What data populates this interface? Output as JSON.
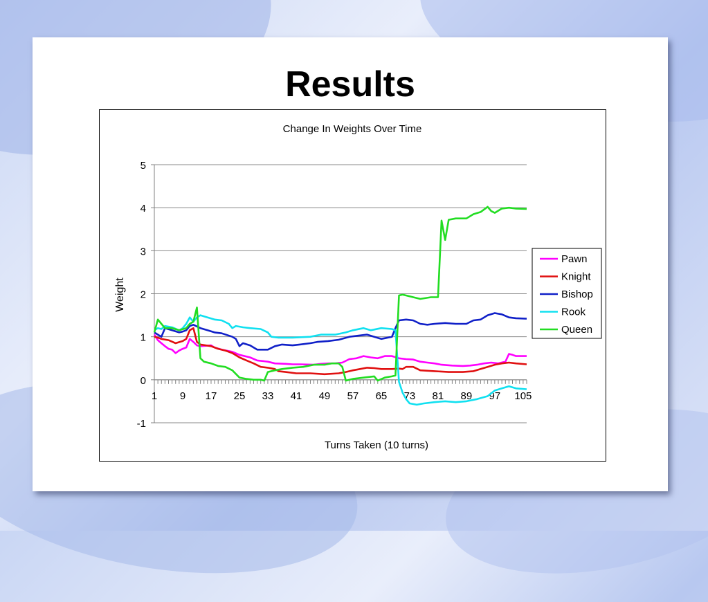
{
  "slide": {
    "title": "Results"
  },
  "chart_data": {
    "type": "line",
    "title": "Change In Weights Over Time",
    "xlabel": "Turns Taken (10 turns)",
    "ylabel": "Weight",
    "ylim": [
      -1,
      5
    ],
    "yticks": [
      -1,
      0,
      1,
      2,
      3,
      4,
      5
    ],
    "xlim": [
      1,
      106
    ],
    "xtick_labels": [
      1,
      9,
      17,
      25,
      33,
      41,
      49,
      57,
      65,
      73,
      81,
      89,
      97,
      105
    ],
    "grid": "horizontal",
    "legend_position": "right",
    "series": [
      {
        "name": "Pawn",
        "color": "#ff00ff",
        "points": [
          [
            1,
            1.05
          ],
          [
            2,
            0.92
          ],
          [
            3,
            0.85
          ],
          [
            4,
            0.78
          ],
          [
            5,
            0.72
          ],
          [
            6,
            0.7
          ],
          [
            7,
            0.62
          ],
          [
            8,
            0.68
          ],
          [
            9,
            0.72
          ],
          [
            10,
            0.75
          ],
          [
            11,
            0.95
          ],
          [
            12,
            0.88
          ],
          [
            13,
            0.8
          ],
          [
            14,
            0.78
          ],
          [
            17,
            0.8
          ],
          [
            18,
            0.75
          ],
          [
            20,
            0.7
          ],
          [
            23,
            0.65
          ],
          [
            25,
            0.58
          ],
          [
            28,
            0.52
          ],
          [
            30,
            0.45
          ],
          [
            33,
            0.42
          ],
          [
            35,
            0.38
          ],
          [
            38,
            0.37
          ],
          [
            40,
            0.36
          ],
          [
            42,
            0.36
          ],
          [
            46,
            0.35
          ],
          [
            48,
            0.37
          ],
          [
            50,
            0.38
          ],
          [
            52,
            0.38
          ],
          [
            54,
            0.4
          ],
          [
            56,
            0.48
          ],
          [
            58,
            0.5
          ],
          [
            60,
            0.55
          ],
          [
            62,
            0.52
          ],
          [
            64,
            0.5
          ],
          [
            66,
            0.55
          ],
          [
            68,
            0.55
          ],
          [
            70,
            0.5
          ],
          [
            72,
            0.48
          ],
          [
            74,
            0.47
          ],
          [
            76,
            0.42
          ],
          [
            78,
            0.4
          ],
          [
            80,
            0.38
          ],
          [
            82,
            0.35
          ],
          [
            85,
            0.33
          ],
          [
            88,
            0.32
          ],
          [
            90,
            0.33
          ],
          [
            92,
            0.35
          ],
          [
            94,
            0.38
          ],
          [
            96,
            0.4
          ],
          [
            98,
            0.38
          ],
          [
            100,
            0.42
          ],
          [
            101,
            0.6
          ],
          [
            102,
            0.58
          ],
          [
            103,
            0.55
          ],
          [
            106,
            0.55
          ]
        ]
      },
      {
        "name": "Knight",
        "color": "#e01010",
        "points": [
          [
            1,
            1.0
          ],
          [
            2,
            0.98
          ],
          [
            3,
            0.95
          ],
          [
            5,
            0.92
          ],
          [
            7,
            0.85
          ],
          [
            9,
            0.9
          ],
          [
            10,
            0.95
          ],
          [
            11,
            1.15
          ],
          [
            12,
            1.2
          ],
          [
            13,
            0.88
          ],
          [
            14,
            0.82
          ],
          [
            17,
            0.78
          ],
          [
            19,
            0.72
          ],
          [
            21,
            0.68
          ],
          [
            23,
            0.62
          ],
          [
            25,
            0.52
          ],
          [
            27,
            0.45
          ],
          [
            29,
            0.38
          ],
          [
            31,
            0.3
          ],
          [
            33,
            0.28
          ],
          [
            35,
            0.25
          ],
          [
            36,
            0.2
          ],
          [
            38,
            0.18
          ],
          [
            41,
            0.15
          ],
          [
            45,
            0.15
          ],
          [
            49,
            0.13
          ],
          [
            53,
            0.15
          ],
          [
            55,
            0.18
          ],
          [
            57,
            0.22
          ],
          [
            59,
            0.25
          ],
          [
            61,
            0.28
          ],
          [
            63,
            0.27
          ],
          [
            65,
            0.25
          ],
          [
            68,
            0.25
          ],
          [
            70,
            0.26
          ],
          [
            71,
            0.25
          ],
          [
            72,
            0.3
          ],
          [
            74,
            0.3
          ],
          [
            76,
            0.22
          ],
          [
            80,
            0.2
          ],
          [
            84,
            0.18
          ],
          [
            88,
            0.18
          ],
          [
            91,
            0.2
          ],
          [
            93,
            0.25
          ],
          [
            95,
            0.3
          ],
          [
            97,
            0.35
          ],
          [
            99,
            0.38
          ],
          [
            101,
            0.4
          ],
          [
            103,
            0.38
          ],
          [
            106,
            0.36
          ]
        ]
      },
      {
        "name": "Bishop",
        "color": "#1020c8",
        "points": [
          [
            1,
            1.1
          ],
          [
            2,
            1.05
          ],
          [
            3,
            1.0
          ],
          [
            4,
            1.2
          ],
          [
            6,
            1.15
          ],
          [
            8,
            1.1
          ],
          [
            9,
            1.12
          ],
          [
            10,
            1.15
          ],
          [
            11,
            1.25
          ],
          [
            12,
            1.28
          ],
          [
            14,
            1.2
          ],
          [
            16,
            1.15
          ],
          [
            18,
            1.1
          ],
          [
            20,
            1.08
          ],
          [
            23,
            1.0
          ],
          [
            24,
            0.95
          ],
          [
            25,
            0.78
          ],
          [
            26,
            0.85
          ],
          [
            28,
            0.8
          ],
          [
            30,
            0.7
          ],
          [
            33,
            0.7
          ],
          [
            35,
            0.78
          ],
          [
            37,
            0.82
          ],
          [
            40,
            0.8
          ],
          [
            42,
            0.82
          ],
          [
            45,
            0.85
          ],
          [
            47,
            0.88
          ],
          [
            50,
            0.9
          ],
          [
            53,
            0.93
          ],
          [
            56,
            1.0
          ],
          [
            58,
            1.02
          ],
          [
            61,
            1.05
          ],
          [
            63,
            1.0
          ],
          [
            65,
            0.95
          ],
          [
            68,
            1.0
          ],
          [
            69,
            1.2
          ],
          [
            70,
            1.38
          ],
          [
            72,
            1.4
          ],
          [
            74,
            1.38
          ],
          [
            76,
            1.3
          ],
          [
            78,
            1.28
          ],
          [
            80,
            1.3
          ],
          [
            83,
            1.32
          ],
          [
            86,
            1.3
          ],
          [
            89,
            1.3
          ],
          [
            91,
            1.38
          ],
          [
            93,
            1.4
          ],
          [
            95,
            1.5
          ],
          [
            97,
            1.55
          ],
          [
            99,
            1.52
          ],
          [
            101,
            1.45
          ],
          [
            103,
            1.43
          ],
          [
            106,
            1.42
          ]
        ]
      },
      {
        "name": "Rook",
        "color": "#10e0f0",
        "points": [
          [
            1,
            1.15
          ],
          [
            2,
            1.2
          ],
          [
            3,
            1.18
          ],
          [
            4,
            1.25
          ],
          [
            6,
            1.22
          ],
          [
            8,
            1.15
          ],
          [
            9,
            1.2
          ],
          [
            10,
            1.3
          ],
          [
            11,
            1.45
          ],
          [
            12,
            1.35
          ],
          [
            13,
            1.45
          ],
          [
            14,
            1.5
          ],
          [
            16,
            1.45
          ],
          [
            18,
            1.4
          ],
          [
            20,
            1.38
          ],
          [
            22,
            1.3
          ],
          [
            23,
            1.2
          ],
          [
            24,
            1.25
          ],
          [
            26,
            1.22
          ],
          [
            28,
            1.2
          ],
          [
            31,
            1.18
          ],
          [
            33,
            1.1
          ],
          [
            34,
            1.0
          ],
          [
            36,
            0.98
          ],
          [
            40,
            0.98
          ],
          [
            45,
            1.0
          ],
          [
            48,
            1.05
          ],
          [
            52,
            1.05
          ],
          [
            55,
            1.1
          ],
          [
            57,
            1.15
          ],
          [
            60,
            1.2
          ],
          [
            62,
            1.15
          ],
          [
            65,
            1.2
          ],
          [
            68,
            1.18
          ],
          [
            69,
            1.15
          ],
          [
            70,
            -0.05
          ],
          [
            71,
            -0.3
          ],
          [
            72,
            -0.45
          ],
          [
            73,
            -0.55
          ],
          [
            75,
            -0.58
          ],
          [
            77,
            -0.55
          ],
          [
            80,
            -0.52
          ],
          [
            83,
            -0.5
          ],
          [
            86,
            -0.52
          ],
          [
            89,
            -0.5
          ],
          [
            92,
            -0.45
          ],
          [
            95,
            -0.38
          ],
          [
            97,
            -0.25
          ],
          [
            99,
            -0.2
          ],
          [
            101,
            -0.15
          ],
          [
            103,
            -0.2
          ],
          [
            106,
            -0.22
          ]
        ]
      },
      {
        "name": "Queen",
        "color": "#22dd22",
        "points": [
          [
            1,
            1.1
          ],
          [
            2,
            1.4
          ],
          [
            3,
            1.3
          ],
          [
            4,
            1.2
          ],
          [
            6,
            1.2
          ],
          [
            8,
            1.15
          ],
          [
            10,
            1.2
          ],
          [
            11,
            1.3
          ],
          [
            12,
            1.35
          ],
          [
            13,
            1.68
          ],
          [
            14,
            0.5
          ],
          [
            15,
            0.42
          ],
          [
            17,
            0.38
          ],
          [
            19,
            0.32
          ],
          [
            21,
            0.3
          ],
          [
            23,
            0.22
          ],
          [
            25,
            0.05
          ],
          [
            27,
            0.02
          ],
          [
            29,
            0.0
          ],
          [
            31,
            0.0
          ],
          [
            32,
            -0.02
          ],
          [
            33,
            0.18
          ],
          [
            35,
            0.22
          ],
          [
            37,
            0.25
          ],
          [
            40,
            0.28
          ],
          [
            43,
            0.3
          ],
          [
            46,
            0.35
          ],
          [
            49,
            0.35
          ],
          [
            51,
            0.38
          ],
          [
            53,
            0.38
          ],
          [
            54,
            0.3
          ],
          [
            55,
            -0.02
          ],
          [
            57,
            0.02
          ],
          [
            60,
            0.05
          ],
          [
            63,
            0.08
          ],
          [
            64,
            -0.02
          ],
          [
            66,
            0.05
          ],
          [
            68,
            0.08
          ],
          [
            69,
            0.1
          ],
          [
            70,
            1.96
          ],
          [
            71,
            1.98
          ],
          [
            74,
            1.92
          ],
          [
            76,
            1.88
          ],
          [
            79,
            1.92
          ],
          [
            81,
            1.92
          ],
          [
            82,
            3.7
          ],
          [
            83,
            3.25
          ],
          [
            84,
            3.72
          ],
          [
            86,
            3.75
          ],
          [
            89,
            3.75
          ],
          [
            91,
            3.85
          ],
          [
            93,
            3.9
          ],
          [
            95,
            4.02
          ],
          [
            96,
            3.92
          ],
          [
            97,
            3.88
          ],
          [
            99,
            3.98
          ],
          [
            101,
            4.0
          ],
          [
            103,
            3.98
          ],
          [
            106,
            3.97
          ]
        ]
      }
    ]
  }
}
